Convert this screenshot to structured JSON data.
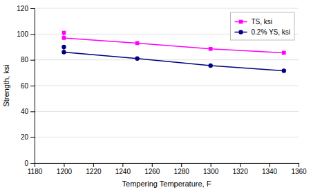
{
  "chart_data": {
    "type": "line",
    "x": [
      1200,
      1200,
      1250,
      1300,
      1350
    ],
    "series": [
      {
        "name": "TS, ksi",
        "color": "#FF00FF",
        "marker": "square",
        "values": [
          101,
          97,
          93,
          88.5,
          85.5
        ]
      },
      {
        "name": "0.2% YS, ksi",
        "color": "#000080",
        "marker": "circle",
        "values": [
          90,
          86,
          81,
          75.5,
          71.5
        ]
      }
    ],
    "xlabel": "Tempering Temperature, F",
    "ylabel": "Strength, ksi",
    "xlim": [
      1180,
      1360
    ],
    "ylim": [
      0,
      120
    ],
    "xticks": [
      1180,
      1200,
      1220,
      1240,
      1260,
      1280,
      1300,
      1320,
      1340,
      1360
    ],
    "yticks": [
      0,
      20,
      40,
      60,
      80,
      100,
      120
    ],
    "grid": "y",
    "legend": "upper right"
  }
}
